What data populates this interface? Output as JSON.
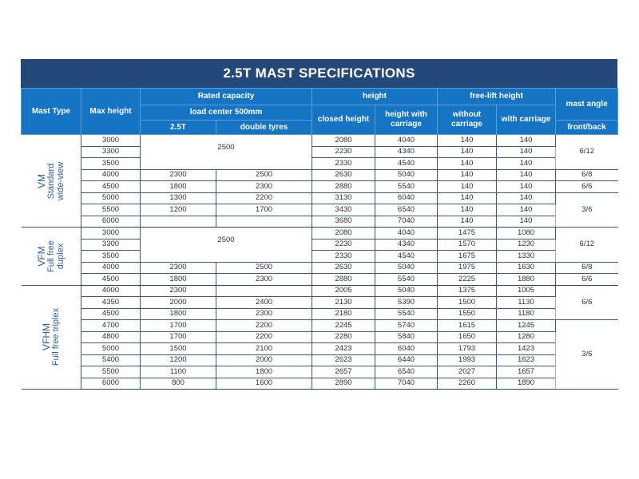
{
  "title": "2.5T MAST SPECIFICATIONS",
  "headers": {
    "mast_type": "Mast Type",
    "max_height": "Max height",
    "rated_capacity": "Rated capacity",
    "load_center": "load center 500mm",
    "cap_25t": "2.5T",
    "double_tyres": "double tyres",
    "height": "height",
    "closed_height": "closed height",
    "height_with_carriage": "height with carriage",
    "free_lift": "free-lift height",
    "without_carriage": "without carriage",
    "with_carriage": "with carriage",
    "mast_angle": "mast angle",
    "front_back": "front/back"
  },
  "groups": [
    {
      "type_lines": [
        "VM",
        "Standard",
        "wide-view"
      ],
      "cap_merged": {
        "rows": 3,
        "value": "2500"
      },
      "angles": [
        {
          "value": "6/12",
          "span": 3
        },
        {
          "value": "6/8",
          "span": 1
        },
        {
          "value": "6/6",
          "span": 1
        },
        {
          "value": "3/6",
          "span": 3
        }
      ],
      "rows": [
        {
          "max": "3000",
          "cap": "",
          "dbl": "",
          "closed": "2080",
          "hwc": "4040",
          "fl_wo": "140",
          "fl_w": "140"
        },
        {
          "max": "3300",
          "cap": "",
          "dbl": "",
          "closed": "2230",
          "hwc": "4340",
          "fl_wo": "140",
          "fl_w": "140"
        },
        {
          "max": "3500",
          "cap": "",
          "dbl": "",
          "closed": "2330",
          "hwc": "4540",
          "fl_wo": "140",
          "fl_w": "140"
        },
        {
          "max": "4000",
          "cap": "2300",
          "dbl": "2500",
          "closed": "2630",
          "hwc": "5040",
          "fl_wo": "140",
          "fl_w": "140"
        },
        {
          "max": "4500",
          "cap": "1800",
          "dbl": "2300",
          "closed": "2880",
          "hwc": "5540",
          "fl_wo": "140",
          "fl_w": "140"
        },
        {
          "max": "5000",
          "cap": "1300",
          "dbl": "2200",
          "closed": "3130",
          "hwc": "6040",
          "fl_wo": "140",
          "fl_w": "140"
        },
        {
          "max": "5500",
          "cap": "1200",
          "dbl": "1700",
          "closed": "3430",
          "hwc": "6540",
          "fl_wo": "140",
          "fl_w": "140"
        },
        {
          "max": "6000",
          "cap": "",
          "dbl": "",
          "closed": "3680",
          "hwc": "7040",
          "fl_wo": "140",
          "fl_w": "140"
        }
      ]
    },
    {
      "type_lines": [
        "VFM",
        "Full free",
        "duplex"
      ],
      "cap_merged": {
        "rows": 3,
        "value": "2500"
      },
      "angles": [
        {
          "value": "6/12",
          "span": 3
        },
        {
          "value": "6/8",
          "span": 1
        },
        {
          "value": "6/6",
          "span": 1
        }
      ],
      "rows": [
        {
          "max": "3000",
          "cap": "",
          "dbl": "",
          "closed": "2080",
          "hwc": "4040",
          "fl_wo": "1475",
          "fl_w": "1080"
        },
        {
          "max": "3300",
          "cap": "",
          "dbl": "",
          "closed": "2230",
          "hwc": "4340",
          "fl_wo": "1570",
          "fl_w": "1230"
        },
        {
          "max": "3500",
          "cap": "",
          "dbl": "",
          "closed": "2330",
          "hwc": "4540",
          "fl_wo": "1675",
          "fl_w": "1330"
        },
        {
          "max": "4000",
          "cap": "2300",
          "dbl": "2500",
          "closed": "2630",
          "hwc": "5040",
          "fl_wo": "1975",
          "fl_w": "1630"
        },
        {
          "max": "4500",
          "cap": "1800",
          "dbl": "2300",
          "closed": "2880",
          "hwc": "5540",
          "fl_wo": "2225",
          "fl_w": "1880"
        }
      ]
    },
    {
      "type_lines": [
        "VFHM",
        "Full free triplex"
      ],
      "cap_merged": null,
      "angles": [
        {
          "value": "6/6",
          "span": 3
        },
        {
          "value": "3/6",
          "span": 6
        }
      ],
      "rows": [
        {
          "max": "4000",
          "cap": "2300",
          "dbl": "",
          "closed": "2005",
          "hwc": "5040",
          "fl_wo": "1375",
          "fl_w": "1005"
        },
        {
          "max": "4350",
          "cap": "2000",
          "dbl": "2400",
          "closed": "2130",
          "hwc": "5390",
          "fl_wo": "1500",
          "fl_w": "1130"
        },
        {
          "max": "4500",
          "cap": "1800",
          "dbl": "2300",
          "closed": "2180",
          "hwc": "5540",
          "fl_wo": "1550",
          "fl_w": "1180"
        },
        {
          "max": "4700",
          "cap": "1700",
          "dbl": "2200",
          "closed": "2245",
          "hwc": "5740",
          "fl_wo": "1615",
          "fl_w": "1245"
        },
        {
          "max": "4800",
          "cap": "1700",
          "dbl": "2200",
          "closed": "2280",
          "hwc": "5840",
          "fl_wo": "1650",
          "fl_w": "1280"
        },
        {
          "max": "5000",
          "cap": "1500",
          "dbl": "2100",
          "closed": "2423",
          "hwc": "6040",
          "fl_wo": "1793",
          "fl_w": "1423"
        },
        {
          "max": "5400",
          "cap": "1200",
          "dbl": "2000",
          "closed": "2623",
          "hwc": "6440",
          "fl_wo": "1993",
          "fl_w": "1623"
        },
        {
          "max": "5500",
          "cap": "1100",
          "dbl": "1800",
          "closed": "2657",
          "hwc": "6540",
          "fl_wo": "2027",
          "fl_w": "1657"
        },
        {
          "max": "6000",
          "cap": "800",
          "dbl": "1600",
          "closed": "2890",
          "hwc": "7040",
          "fl_wo": "2260",
          "fl_w": "1890"
        }
      ]
    }
  ],
  "colors": {
    "title_bg": "#23497a",
    "header_bg": "#1574c4",
    "mast_type_text": "#2b5ca6"
  }
}
